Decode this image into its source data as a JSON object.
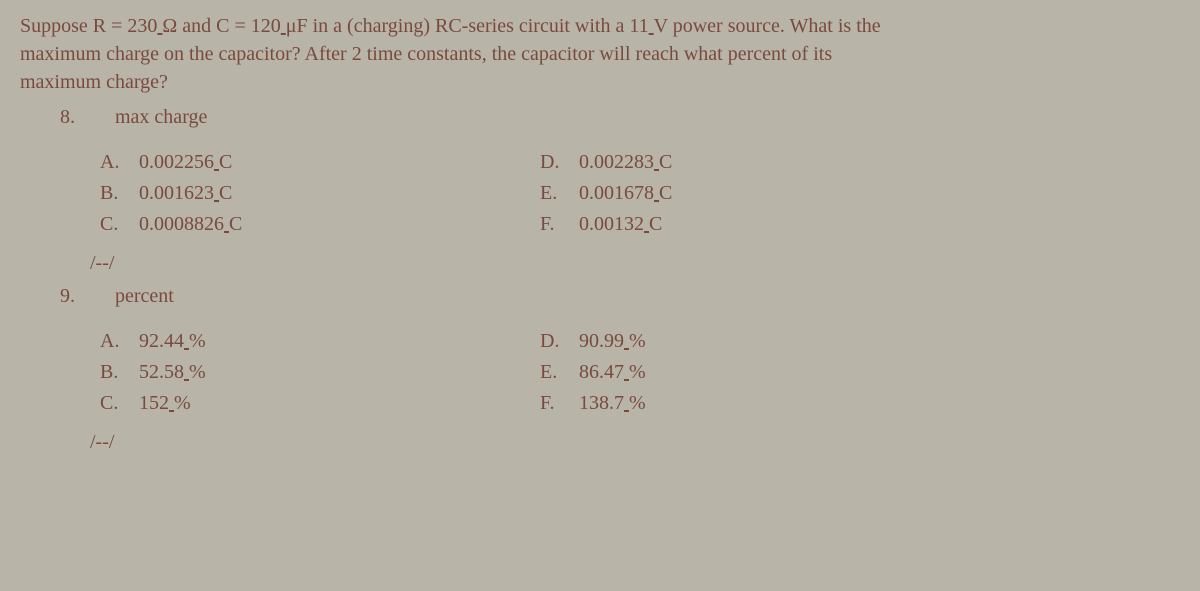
{
  "background_color": "#b8b4a8",
  "text_color": "#7a4a3e",
  "prompt": {
    "line1_a": "Suppose R = 230",
    "line1_b": "Ω and C = 120",
    "line1_c": "μF in a (charging) RC-series circuit with a 11",
    "line1_d": "V power source. What is the",
    "line2": "maximum charge on the capacitor? After 2 time constants, the capacitor will reach what percent of its",
    "line3": "maximum charge?"
  },
  "q8": {
    "number": "8.",
    "title": "max charge",
    "options": {
      "A": {
        "letter": "A.",
        "value": "0.002256",
        "unit": "C"
      },
      "B": {
        "letter": "B.",
        "value": "0.001623",
        "unit": "C"
      },
      "C": {
        "letter": "C.",
        "value": "0.0008826",
        "unit": "C"
      },
      "D": {
        "letter": "D.",
        "value": "0.002283",
        "unit": "C"
      },
      "E": {
        "letter": "E.",
        "value": "0.001678",
        "unit": "C"
      },
      "F": {
        "letter": "F.",
        "value": "0.00132",
        "unit": "C"
      }
    },
    "separator": "/--/"
  },
  "q9": {
    "number": "9.",
    "title": "percent",
    "options": {
      "A": {
        "letter": "A.",
        "value": "92.44",
        "unit": "%"
      },
      "B": {
        "letter": "B.",
        "value": "52.58",
        "unit": "%"
      },
      "C": {
        "letter": "C.",
        "value": "152",
        "unit": "%"
      },
      "D": {
        "letter": "D.",
        "value": "90.99",
        "unit": "%"
      },
      "E": {
        "letter": "E.",
        "value": "86.47",
        "unit": "%"
      },
      "F": {
        "letter": "F.",
        "value": "138.7",
        "unit": "%"
      }
    },
    "separator": "/--/"
  }
}
